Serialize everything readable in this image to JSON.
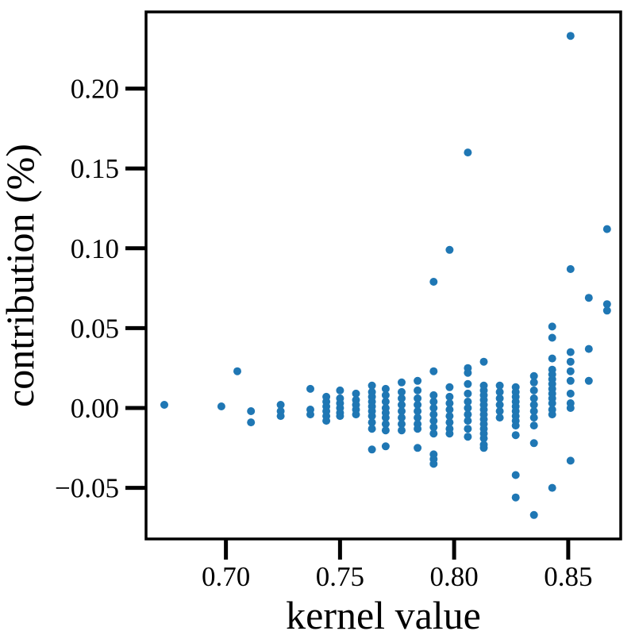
{
  "chart_data": {
    "type": "scatter",
    "title": "",
    "xlabel": "kernel value",
    "ylabel": "contribution (%)",
    "xlim": [
      0.665,
      0.873
    ],
    "ylim": [
      -0.082,
      0.248
    ],
    "xticks": [
      0.7,
      0.75,
      0.8,
      0.85
    ],
    "xtick_labels": [
      "0.70",
      "0.75",
      "0.80",
      "0.85"
    ],
    "yticks": [
      -0.05,
      0.0,
      0.05,
      0.1,
      0.15,
      0.2
    ],
    "ytick_labels": [
      "−0.05",
      "0.00",
      "0.05",
      "0.10",
      "0.15",
      "0.20"
    ],
    "grid": false,
    "marker_color": "#1f77b4",
    "series": [
      {
        "points": [
          [
            0.673,
            0.002
          ],
          [
            0.698,
            0.001
          ],
          [
            0.705,
            0.023
          ],
          [
            0.711,
            -0.002
          ],
          [
            0.711,
            -0.009
          ],
          [
            0.724,
            0.002
          ],
          [
            0.724,
            -0.002
          ],
          [
            0.724,
            -0.005
          ],
          [
            0.737,
            0.012
          ],
          [
            0.737,
            -0.001
          ],
          [
            0.737,
            -0.004
          ],
          [
            0.744,
            0.007
          ],
          [
            0.744,
            0.004
          ],
          [
            0.744,
            0.001
          ],
          [
            0.744,
            -0.002
          ],
          [
            0.744,
            -0.005
          ],
          [
            0.744,
            -0.008
          ],
          [
            0.75,
            0.011
          ],
          [
            0.75,
            0.006
          ],
          [
            0.75,
            0.003
          ],
          [
            0.75,
            0.0
          ],
          [
            0.75,
            -0.003
          ],
          [
            0.75,
            -0.005
          ],
          [
            0.757,
            0.009
          ],
          [
            0.757,
            0.005
          ],
          [
            0.757,
            0.002
          ],
          [
            0.757,
            -0.001
          ],
          [
            0.757,
            -0.004
          ],
          [
            0.764,
            0.014
          ],
          [
            0.764,
            0.01
          ],
          [
            0.764,
            0.007
          ],
          [
            0.764,
            0.004
          ],
          [
            0.764,
            0.001
          ],
          [
            0.764,
            -0.002
          ],
          [
            0.764,
            -0.005
          ],
          [
            0.764,
            -0.009
          ],
          [
            0.764,
            -0.013
          ],
          [
            0.764,
            -0.026
          ],
          [
            0.77,
            0.012
          ],
          [
            0.77,
            0.008
          ],
          [
            0.77,
            0.004
          ],
          [
            0.77,
            0.0
          ],
          [
            0.77,
            -0.003
          ],
          [
            0.77,
            -0.006
          ],
          [
            0.77,
            -0.01
          ],
          [
            0.77,
            -0.014
          ],
          [
            0.77,
            -0.024
          ],
          [
            0.777,
            0.016
          ],
          [
            0.777,
            0.01
          ],
          [
            0.777,
            0.006
          ],
          [
            0.777,
            0.002
          ],
          [
            0.777,
            -0.002
          ],
          [
            0.777,
            -0.006
          ],
          [
            0.777,
            -0.01
          ],
          [
            0.777,
            -0.014
          ],
          [
            0.784,
            0.017
          ],
          [
            0.784,
            0.011
          ],
          [
            0.784,
            0.006
          ],
          [
            0.784,
            0.002
          ],
          [
            0.784,
            -0.002
          ],
          [
            0.784,
            -0.006
          ],
          [
            0.784,
            -0.01
          ],
          [
            0.784,
            -0.013
          ],
          [
            0.784,
            -0.025
          ],
          [
            0.791,
            0.079
          ],
          [
            0.791,
            0.023
          ],
          [
            0.791,
            0.008
          ],
          [
            0.791,
            0.004
          ],
          [
            0.791,
            0.0
          ],
          [
            0.791,
            -0.004
          ],
          [
            0.791,
            -0.008
          ],
          [
            0.791,
            -0.012
          ],
          [
            0.791,
            -0.016
          ],
          [
            0.791,
            -0.029
          ],
          [
            0.791,
            -0.032
          ],
          [
            0.791,
            -0.035
          ],
          [
            0.798,
            0.099
          ],
          [
            0.798,
            0.013
          ],
          [
            0.798,
            0.007
          ],
          [
            0.798,
            0.003
          ],
          [
            0.798,
            -0.001
          ],
          [
            0.798,
            -0.005
          ],
          [
            0.798,
            -0.009
          ],
          [
            0.798,
            -0.013
          ],
          [
            0.798,
            -0.016
          ],
          [
            0.806,
            0.16
          ],
          [
            0.806,
            0.025
          ],
          [
            0.806,
            0.022
          ],
          [
            0.806,
            0.015
          ],
          [
            0.806,
            0.009
          ],
          [
            0.806,
            0.004
          ],
          [
            0.806,
            0.0
          ],
          [
            0.806,
            -0.004
          ],
          [
            0.806,
            -0.008
          ],
          [
            0.806,
            -0.013
          ],
          [
            0.806,
            -0.018
          ],
          [
            0.813,
            0.029
          ],
          [
            0.813,
            0.014
          ],
          [
            0.813,
            0.011
          ],
          [
            0.813,
            0.008
          ],
          [
            0.813,
            0.005
          ],
          [
            0.813,
            0.002
          ],
          [
            0.813,
            -0.001
          ],
          [
            0.813,
            -0.004
          ],
          [
            0.813,
            -0.007
          ],
          [
            0.813,
            -0.01
          ],
          [
            0.813,
            -0.013
          ],
          [
            0.813,
            -0.016
          ],
          [
            0.813,
            -0.019
          ],
          [
            0.813,
            -0.023
          ],
          [
            0.813,
            -0.025
          ],
          [
            0.82,
            0.014
          ],
          [
            0.82,
            0.01
          ],
          [
            0.82,
            0.006
          ],
          [
            0.82,
            0.002
          ],
          [
            0.82,
            -0.002
          ],
          [
            0.82,
            -0.006
          ],
          [
            0.827,
            0.013
          ],
          [
            0.827,
            0.01
          ],
          [
            0.827,
            0.007
          ],
          [
            0.827,
            0.004
          ],
          [
            0.827,
            0.001
          ],
          [
            0.827,
            -0.002
          ],
          [
            0.827,
            -0.005
          ],
          [
            0.827,
            -0.008
          ],
          [
            0.827,
            -0.011
          ],
          [
            0.827,
            -0.017
          ],
          [
            0.827,
            -0.042
          ],
          [
            0.827,
            -0.056
          ],
          [
            0.835,
            0.02
          ],
          [
            0.835,
            0.016
          ],
          [
            0.835,
            0.011
          ],
          [
            0.835,
            0.006
          ],
          [
            0.835,
            0.002
          ],
          [
            0.835,
            -0.002
          ],
          [
            0.835,
            -0.006
          ],
          [
            0.835,
            -0.011
          ],
          [
            0.835,
            -0.022
          ],
          [
            0.835,
            -0.067
          ],
          [
            0.843,
            0.051
          ],
          [
            0.843,
            0.044
          ],
          [
            0.843,
            0.031
          ],
          [
            0.843,
            0.024
          ],
          [
            0.843,
            0.021
          ],
          [
            0.843,
            0.018
          ],
          [
            0.843,
            0.015
          ],
          [
            0.843,
            0.012
          ],
          [
            0.843,
            0.009
          ],
          [
            0.843,
            0.006
          ],
          [
            0.843,
            0.003
          ],
          [
            0.843,
            -0.001
          ],
          [
            0.843,
            -0.004
          ],
          [
            0.843,
            -0.05
          ],
          [
            0.851,
            0.233
          ],
          [
            0.851,
            0.087
          ],
          [
            0.851,
            0.035
          ],
          [
            0.851,
            0.029
          ],
          [
            0.851,
            0.023
          ],
          [
            0.851,
            0.017
          ],
          [
            0.851,
            0.009
          ],
          [
            0.851,
            0.003
          ],
          [
            0.851,
            0.0
          ],
          [
            0.851,
            -0.033
          ],
          [
            0.859,
            0.069
          ],
          [
            0.859,
            0.037
          ],
          [
            0.859,
            0.017
          ],
          [
            0.867,
            0.112
          ],
          [
            0.867,
            0.065
          ],
          [
            0.867,
            0.061
          ]
        ]
      }
    ]
  }
}
